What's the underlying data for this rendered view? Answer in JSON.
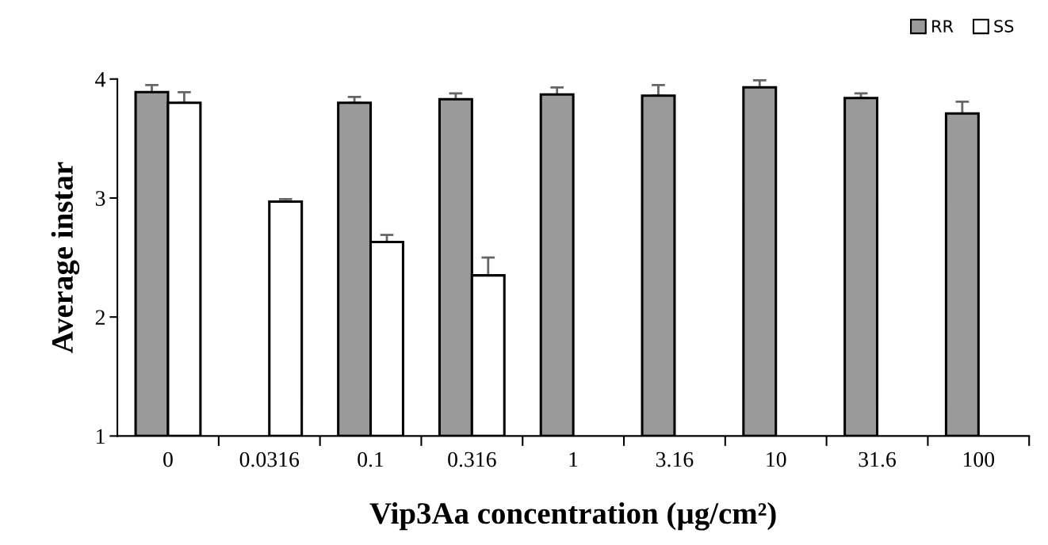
{
  "chart_data": {
    "type": "bar",
    "xlabel": "Vip3Aa concentration (µg/cm²)",
    "ylabel": "Average instar",
    "categories": [
      "0",
      "0.0316",
      "0.1",
      "0.316",
      "1",
      "3.16",
      "10",
      "31.6",
      "100"
    ],
    "series": [
      {
        "name": "RR",
        "color": "#9a9a9a",
        "values": [
          3.89,
          null,
          3.8,
          3.83,
          3.87,
          3.86,
          3.93,
          3.84,
          3.71
        ],
        "errors": [
          [
            3.89,
            3.95
          ],
          null,
          [
            3.8,
            3.85
          ],
          [
            3.83,
            3.88
          ],
          [
            3.87,
            3.93
          ],
          [
            3.86,
            3.95
          ],
          [
            3.93,
            3.99
          ],
          [
            3.84,
            3.88
          ],
          [
            3.71,
            3.81
          ]
        ]
      },
      {
        "name": "SS",
        "color": "#ffffff",
        "values": [
          3.8,
          2.97,
          2.63,
          2.35,
          null,
          null,
          null,
          null,
          null
        ],
        "errors": [
          [
            3.8,
            3.89
          ],
          [
            2.97,
            2.99
          ],
          [
            2.63,
            2.69
          ],
          [
            2.35,
            2.5
          ],
          null,
          null,
          null,
          null,
          null
        ]
      }
    ],
    "ylim": [
      1,
      4
    ],
    "yticks": [
      1,
      2,
      3,
      4
    ],
    "grid": false,
    "legend": "top right"
  }
}
